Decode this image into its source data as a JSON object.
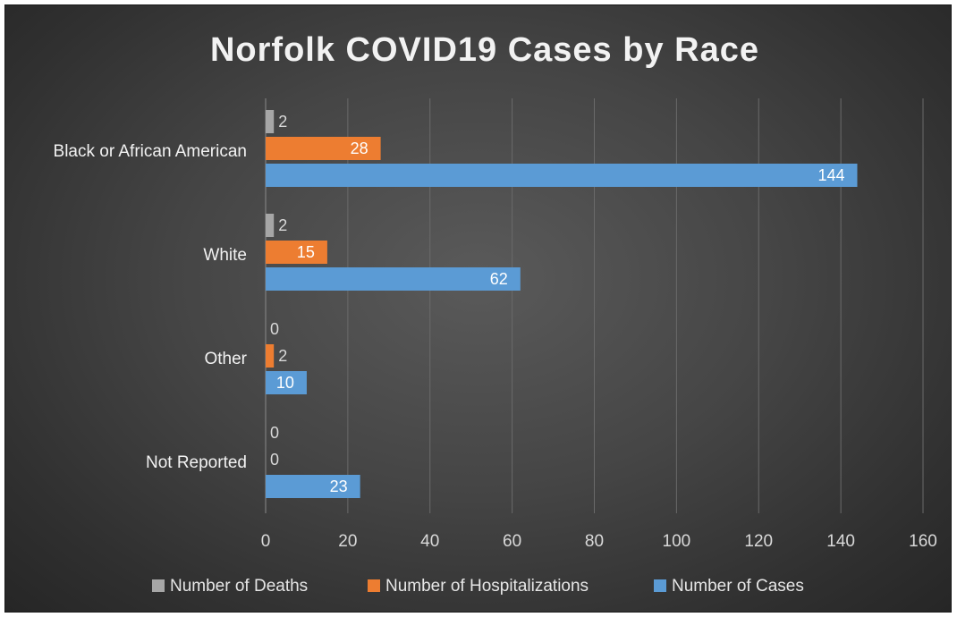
{
  "chart_data": {
    "type": "bar",
    "orientation": "horizontal",
    "title": "Norfolk COVID19 Cases by Race",
    "categories": [
      "Black or African American",
      "White",
      "Other",
      "Not Reported"
    ],
    "series": [
      {
        "name": "Number of Deaths",
        "color": "#a6a6a6",
        "values": [
          2,
          2,
          0,
          0
        ]
      },
      {
        "name": "Number of Hospitalizations",
        "color": "#ed7d31",
        "values": [
          28,
          15,
          2,
          0
        ]
      },
      {
        "name": "Number of Cases",
        "color": "#5b9bd5",
        "values": [
          144,
          62,
          10,
          23
        ]
      }
    ],
    "xlim": [
      0,
      160
    ],
    "xticks": [
      0,
      20,
      40,
      60,
      80,
      100,
      120,
      140,
      160
    ],
    "grid": true,
    "legend": "bottom"
  }
}
